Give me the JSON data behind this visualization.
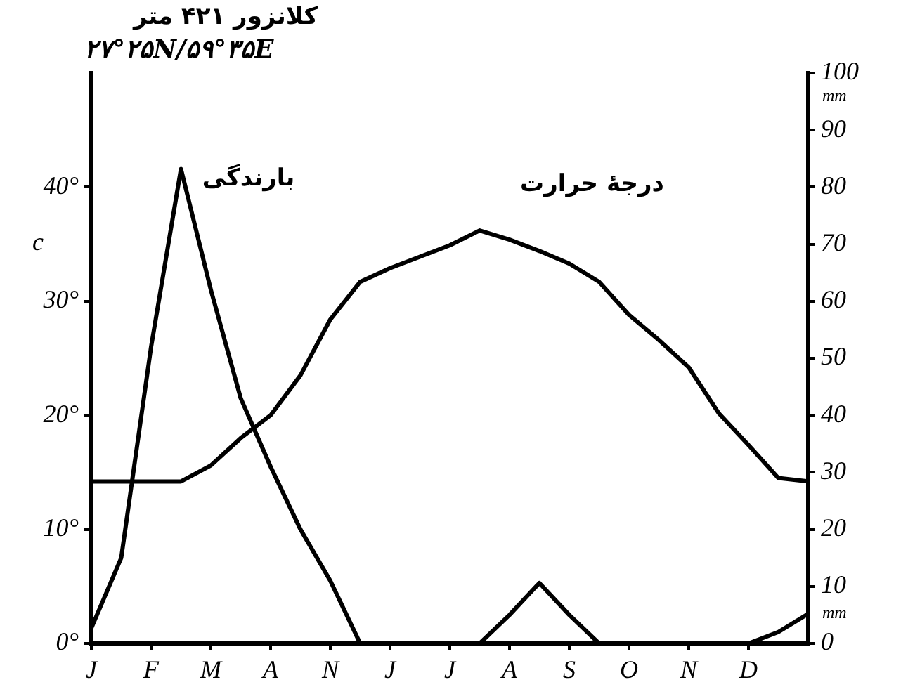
{
  "chart_data": {
    "type": "line",
    "title": "کلانزور ۴۲۱ متر",
    "subtitle": "۲۷°۲۵N/۵۹°۳۵E",
    "ylabel": "c",
    "y2label": "mm",
    "annotations": [
      "mm"
    ],
    "categories": [
      "J",
      null,
      "F",
      null,
      "M",
      null,
      "A",
      null,
      "N",
      null,
      "J",
      null,
      "J",
      null,
      "A",
      null,
      "S",
      null,
      "O",
      null,
      "N",
      null,
      "D",
      null,
      null
    ],
    "ylim": [
      0,
      50
    ],
    "yticks": [
      {
        "value": 0,
        "label": "0°"
      },
      {
        "value": 10,
        "label": "10°"
      },
      {
        "value": 20,
        "label": "20°"
      },
      {
        "value": 30,
        "label": "30°"
      },
      {
        "value": 40,
        "label": "40°"
      }
    ],
    "y2lim": [
      0,
      100
    ],
    "y2ticks": [
      0,
      10,
      20,
      30,
      40,
      50,
      60,
      70,
      80,
      90,
      100
    ],
    "grid": false,
    "legend": false,
    "marker": "none",
    "line_style": "solid",
    "series": [
      {
        "name": "درجهٔ حرارت",
        "color": "#000000",
        "values": [
          14.2,
          14.2,
          14.2,
          14.2,
          15.6,
          18,
          20,
          23.5,
          28.4,
          31.7,
          32.9,
          33.9,
          34.9,
          36.2,
          35.4,
          34.4,
          33.3,
          31.7,
          28.8,
          26.6,
          24.2,
          20.2,
          17.4,
          14.5,
          14.2
        ]
      },
      {
        "name": "بارندگی",
        "color": "#000000",
        "axis": "y2",
        "values": [
          2.7,
          15,
          52,
          83.2,
          62,
          43,
          31,
          20,
          11,
          0,
          0,
          0,
          0,
          0,
          5,
          10.6,
          5,
          0,
          0,
          0,
          0,
          0,
          0,
          2,
          5.2
        ]
      }
    ]
  }
}
